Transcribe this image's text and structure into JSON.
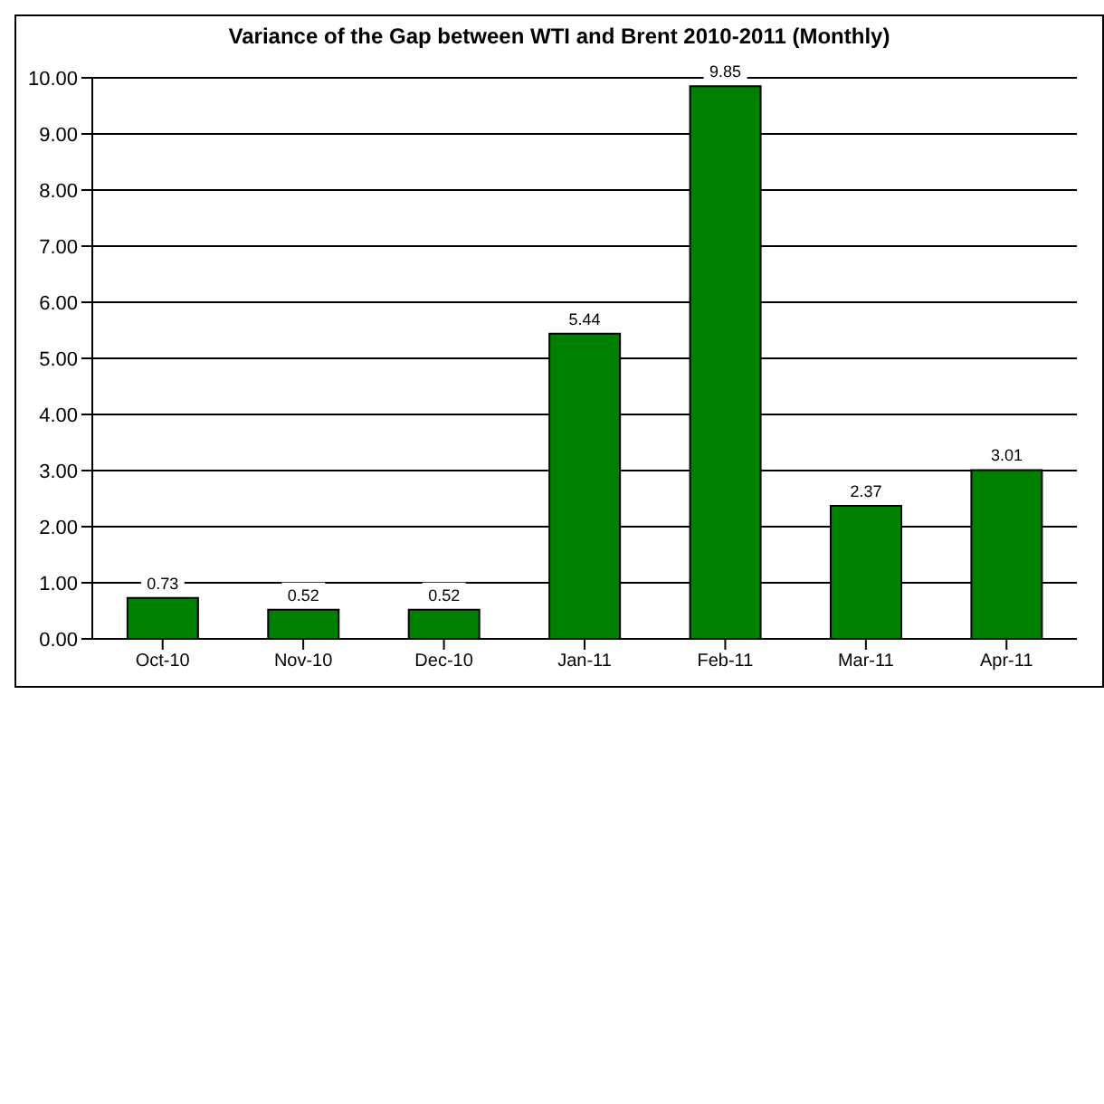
{
  "chart_data": {
    "type": "bar",
    "title": "Variance of the Gap between WTI and Brent 2010-2011 (Monthly)",
    "categories": [
      "Oct-10",
      "Nov-10",
      "Dec-10",
      "Jan-11",
      "Feb-11",
      "Mar-11",
      "Apr-11"
    ],
    "values": [
      0.73,
      0.52,
      0.52,
      5.44,
      9.85,
      2.37,
      3.01
    ],
    "color": "#008000",
    "ylim": [
      0,
      10
    ],
    "yticks": [
      {
        "value": 0,
        "label": "0.00"
      },
      {
        "value": 1,
        "label": "1.00"
      },
      {
        "value": 2,
        "label": "2.00"
      },
      {
        "value": 3,
        "label": "3.00"
      },
      {
        "value": 4,
        "label": "4.00"
      },
      {
        "value": 5,
        "label": "5.00"
      },
      {
        "value": 6,
        "label": "6.00"
      },
      {
        "value": 7,
        "label": "7.00"
      },
      {
        "value": 8,
        "label": "8.00"
      },
      {
        "value": 9,
        "label": "9.00"
      },
      {
        "value": 10,
        "label": "10.00"
      }
    ],
    "grid": "y",
    "data_labels": true
  }
}
